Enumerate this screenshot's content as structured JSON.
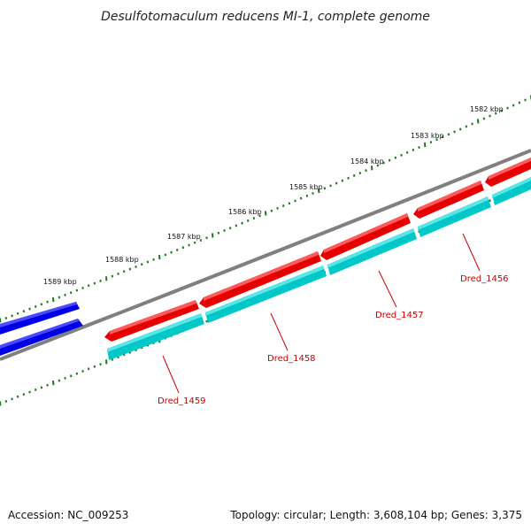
{
  "title": "Desulfotomaculum reducens MI-1, complete genome",
  "footer": {
    "accession": "Accession: NC_009253",
    "summary": "Topology: circular; Length: 3,608,104 bp; Genes: 3,375"
  },
  "kbp_labels": [
    "1582 kbp",
    "1583 kbp",
    "1584 kbp",
    "1585 kbp",
    "1586 kbp",
    "1587 kbp",
    "1588 kbp",
    "1589 kbp"
  ],
  "genes": [
    {
      "label": "Dred_1456"
    },
    {
      "label": "Dred_1457"
    },
    {
      "label": "Dred_1458"
    },
    {
      "label": "Dred_1459"
    }
  ],
  "colors": {
    "backbone": "#808080",
    "forward_cds": "#0000e6",
    "reverse_cds": "#e60000",
    "reverse_gene": "#00c8c8",
    "ticks": "#1a7a1a",
    "label": "#cc0000"
  }
}
